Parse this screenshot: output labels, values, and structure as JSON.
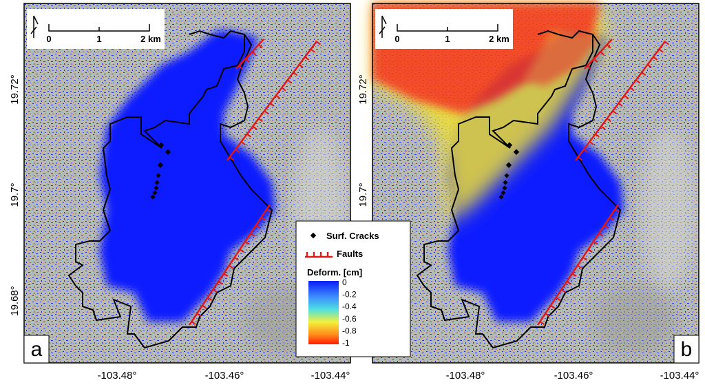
{
  "panels": [
    {
      "label": "a",
      "scale_bar": [
        "0",
        "1",
        "2 km"
      ]
    },
    {
      "label": "b",
      "scale_bar": [
        "0",
        "1",
        "2 km"
      ]
    }
  ],
  "x_axis": {
    "labels": [
      "-103.48°",
      "-103.46°",
      "-103.44°"
    ]
  },
  "y_axis": {
    "labels": [
      "19.72°",
      "19.7°",
      "19.68°"
    ]
  },
  "legend": {
    "cracks": "Surf. Cracks",
    "faults": "Faults",
    "deformation_title": "Deform. [cm]",
    "colorbar_labels": [
      "0",
      "-0.2",
      "-0.4",
      "-0.6",
      "-0.8",
      "-1"
    ]
  }
}
